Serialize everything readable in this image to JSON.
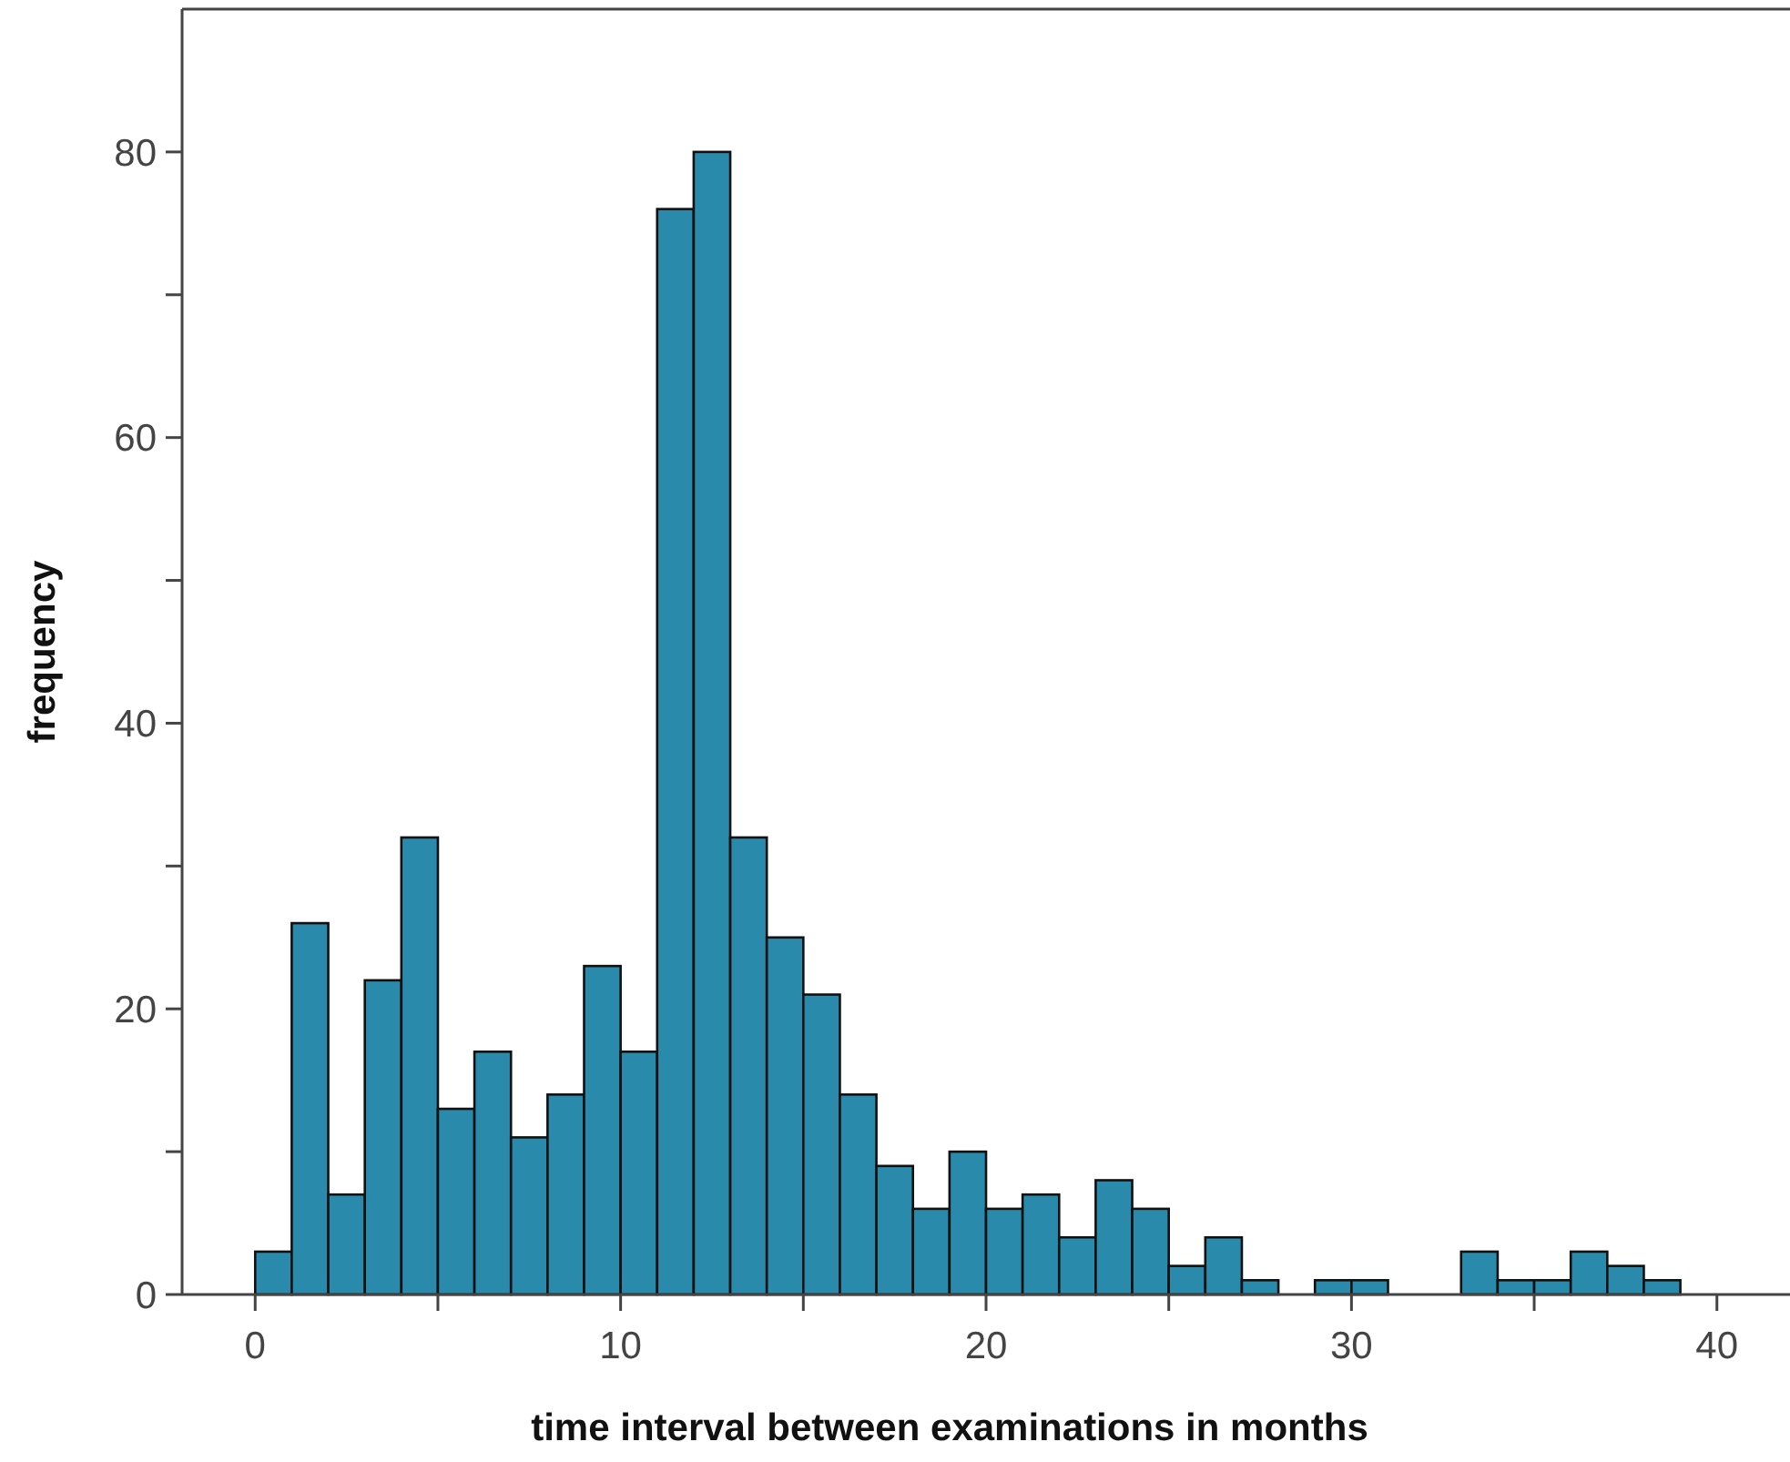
{
  "chart_data": {
    "type": "histogram",
    "xlabel": "time interval between examinations in months",
    "ylabel": "frequency",
    "bins": [
      0,
      1,
      2,
      3,
      4,
      5,
      6,
      7,
      8,
      9,
      10,
      11,
      12,
      13,
      14,
      15,
      16,
      17,
      18,
      19,
      20,
      21,
      22,
      23,
      24,
      25,
      26,
      27,
      28,
      29,
      30,
      31,
      32,
      33,
      34,
      35,
      36,
      37,
      38,
      39
    ],
    "values": [
      3,
      26,
      7,
      22,
      32,
      13,
      17,
      11,
      14,
      23,
      17,
      76,
      80,
      32,
      25,
      21,
      14,
      9,
      6,
      10,
      6,
      7,
      4,
      8,
      6,
      2,
      4,
      1,
      0,
      1,
      1,
      0,
      0,
      3,
      1,
      1,
      3,
      2,
      1
    ],
    "color": "#2a8aab",
    "xlim": [
      -2,
      42
    ],
    "xticks": [
      0,
      {
        "value": 5,
        "label": null
      },
      10,
      {
        "value": 15,
        "label": null
      },
      20,
      {
        "value": 25,
        "label": null
      },
      30,
      {
        "value": 35,
        "label": null
      },
      40
    ],
    "ylim": [
      0,
      90
    ],
    "yticks": [
      0,
      {
        "value": 10,
        "label": null
      },
      20,
      {
        "value": 30,
        "label": null
      },
      40,
      {
        "value": 50,
        "label": null
      },
      60,
      {
        "value": 70,
        "label": null
      },
      80
    ],
    "grid": false
  }
}
